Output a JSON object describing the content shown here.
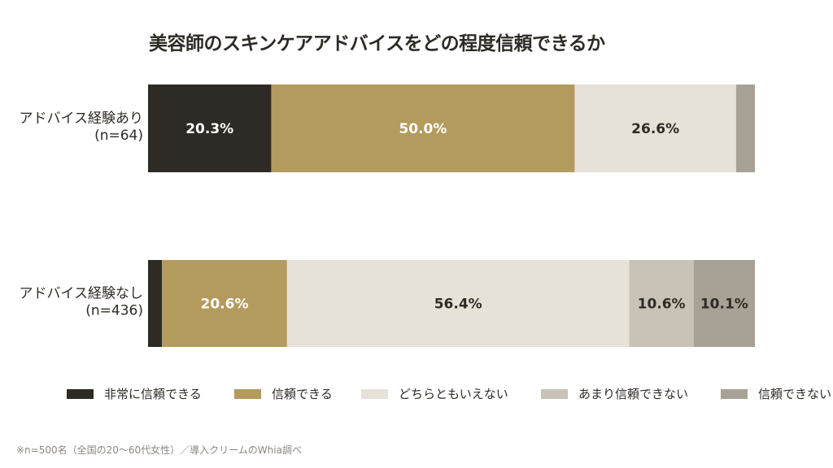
{
  "chart_data": {
    "type": "bar",
    "orientation": "horizontal",
    "stacked": true,
    "title": "美容師のスキンケアアドバイスをどの程度信頼できるか",
    "xlim": [
      0,
      100
    ],
    "categories": [
      "アドバイス経験あり\n(n=64)",
      "アドバイス経験なし\n(n=436)"
    ],
    "series": [
      {
        "name": "非常に信頼できる",
        "color": "#2e2b26",
        "label_color": "#ffffff",
        "values": [
          20.3,
          2.3
        ],
        "labels": [
          "20.3%",
          ""
        ]
      },
      {
        "name": "信頼できる",
        "color": "#b39b5d",
        "label_color": "#ffffff",
        "values": [
          50.0,
          20.6
        ],
        "labels": [
          "50.0%",
          "20.6%"
        ]
      },
      {
        "name": "どちらともいえない",
        "color": "#e6e2d8",
        "label_color": "#2e2b26",
        "values": [
          26.6,
          56.4
        ],
        "labels": [
          "26.6%",
          "56.4%"
        ]
      },
      {
        "name": "あまり信頼できない",
        "color": "#c9c2b6",
        "label_color": "#2e2b26",
        "values": [
          0,
          10.6
        ],
        "labels": [
          "",
          "10.6%"
        ]
      },
      {
        "name": "信頼できない",
        "color": "#a8a195",
        "label_color": "#2e2b26",
        "values": [
          3.1,
          10.1
        ],
        "labels": [
          "",
          "10.1%"
        ]
      }
    ],
    "legend_position": "bottom",
    "grid": false
  },
  "footnote": "※n=500名（全国の20〜60代女性）／導入クリームのWhia調べ"
}
